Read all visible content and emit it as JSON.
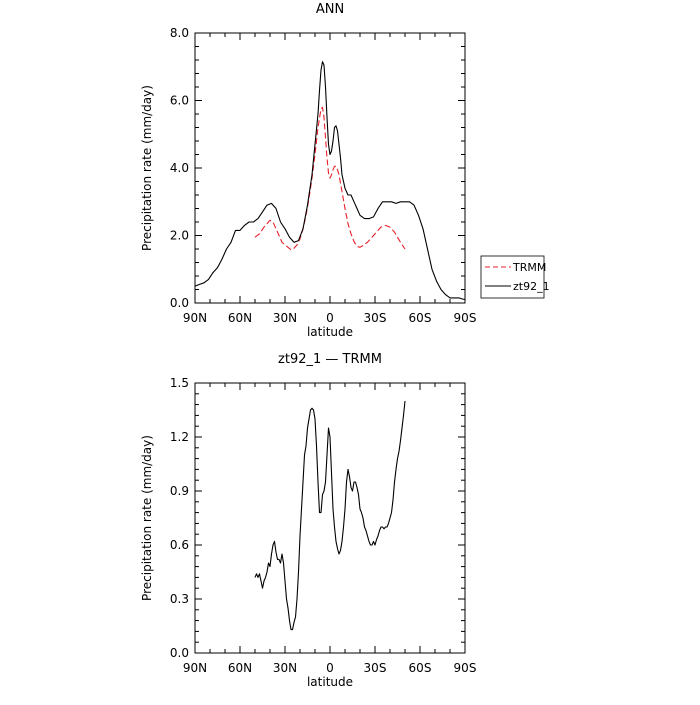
{
  "chart_data": [
    {
      "type": "line",
      "title": "ANN",
      "xlabel": "latitude",
      "ylabel": "Precipitation rate (mm/day)",
      "xlim": [
        90,
        -90
      ],
      "ylim": [
        0,
        8
      ],
      "x_ticks": [
        {
          "value": 90,
          "label": "90N"
        },
        {
          "value": 60,
          "label": "60N"
        },
        {
          "value": 30,
          "label": "30N"
        },
        {
          "value": 0,
          "label": "0"
        },
        {
          "value": -30,
          "label": "30S"
        },
        {
          "value": -60,
          "label": "60S"
        },
        {
          "value": -90,
          "label": "90S"
        }
      ],
      "y_ticks": [
        {
          "value": 0,
          "label": "0.0"
        },
        {
          "value": 2,
          "label": "2.0"
        },
        {
          "value": 4,
          "label": "4.0"
        },
        {
          "value": 6,
          "label": "6.0"
        },
        {
          "value": 8,
          "label": "8.0"
        }
      ],
      "legend_position": "right",
      "series": [
        {
          "name": "TRMM",
          "color": "#e8202a",
          "dash": "dashed",
          "x": [
            50,
            47,
            44,
            42,
            40,
            38,
            36,
            34,
            32,
            30,
            28,
            26,
            24,
            22,
            20,
            18,
            16,
            14,
            12,
            10,
            8,
            6,
            5,
            4,
            3,
            2,
            1,
            0,
            -1,
            -2,
            -3,
            -4,
            -5,
            -6,
            -8,
            -10,
            -12,
            -14,
            -16,
            -18,
            -20,
            -22,
            -25,
            -28,
            -31,
            -34,
            -37,
            -40,
            -43,
            -45,
            -47,
            -50
          ],
          "y": [
            1.95,
            2.05,
            2.25,
            2.35,
            2.45,
            2.4,
            2.2,
            2.0,
            1.8,
            1.72,
            1.65,
            1.58,
            1.62,
            1.72,
            1.9,
            2.2,
            2.6,
            3.1,
            3.7,
            4.4,
            5.2,
            5.75,
            5.8,
            5.5,
            4.9,
            4.3,
            3.85,
            3.7,
            3.8,
            3.95,
            4.05,
            4.05,
            3.95,
            3.8,
            3.3,
            2.8,
            2.35,
            2.05,
            1.82,
            1.68,
            1.65,
            1.7,
            1.8,
            1.95,
            2.1,
            2.25,
            2.3,
            2.25,
            2.1,
            1.95,
            1.8,
            1.6
          ]
        },
        {
          "name": "zt92_1",
          "color": "#000000",
          "dash": "solid",
          "x": [
            90,
            87,
            84,
            81,
            78,
            75,
            72,
            69,
            66,
            63,
            60,
            57,
            54,
            51,
            48,
            45,
            42,
            39,
            36,
            33,
            30,
            27,
            24,
            21,
            18,
            15,
            12,
            10,
            8,
            7,
            6,
            5,
            4,
            3,
            2,
            1,
            0,
            -1,
            -2,
            -3,
            -4,
            -5,
            -6,
            -7,
            -8,
            -10,
            -12,
            -14,
            -16,
            -18,
            -20,
            -23,
            -26,
            -29,
            -32,
            -35,
            -38,
            -41,
            -44,
            -47,
            -50,
            -53,
            -56,
            -59,
            -62,
            -65,
            -68,
            -71,
            -74,
            -77,
            -80,
            -83,
            -86,
            -88,
            -90
          ],
          "y": [
            0.5,
            0.55,
            0.6,
            0.7,
            0.9,
            1.05,
            1.3,
            1.6,
            1.8,
            2.15,
            2.15,
            2.3,
            2.4,
            2.4,
            2.5,
            2.7,
            2.9,
            2.95,
            2.8,
            2.4,
            2.2,
            1.95,
            1.8,
            1.85,
            2.2,
            2.9,
            3.8,
            4.7,
            5.6,
            6.3,
            6.9,
            7.15,
            7.05,
            6.4,
            5.5,
            4.7,
            4.4,
            4.5,
            4.8,
            5.2,
            5.25,
            5.1,
            4.7,
            4.3,
            3.8,
            3.4,
            3.2,
            3.2,
            3.0,
            2.8,
            2.6,
            2.5,
            2.5,
            2.55,
            2.8,
            3.0,
            3.0,
            3.0,
            2.95,
            3.0,
            3.0,
            3.0,
            2.9,
            2.6,
            2.2,
            1.6,
            1.0,
            0.65,
            0.4,
            0.25,
            0.15,
            0.15,
            0.15,
            0.12,
            0.1
          ]
        }
      ]
    },
    {
      "type": "line",
      "title": "zt92_1 — TRMM",
      "xlabel": "latitude",
      "ylabel": "Precipitation rate (mm/day)",
      "xlim": [
        90,
        -90
      ],
      "ylim": [
        0,
        1.5
      ],
      "x_ticks": [
        {
          "value": 90,
          "label": "90N"
        },
        {
          "value": 60,
          "label": "60N"
        },
        {
          "value": 30,
          "label": "30N"
        },
        {
          "value": 0,
          "label": "0"
        },
        {
          "value": -30,
          "label": "30S"
        },
        {
          "value": -60,
          "label": "60S"
        },
        {
          "value": -90,
          "label": "90S"
        }
      ],
      "y_ticks": [
        {
          "value": 0,
          "label": "0.0"
        },
        {
          "value": 0.3,
          "label": "0.3"
        },
        {
          "value": 0.6,
          "label": "0.6"
        },
        {
          "value": 0.9,
          "label": "0.9"
        },
        {
          "value": 1.2,
          "label": "1.2"
        },
        {
          "value": 1.5,
          "label": "1.5"
        }
      ],
      "series": [
        {
          "color": "#000000",
          "dash": "solid",
          "x": [
            50,
            49,
            48,
            47,
            46,
            45,
            44,
            43,
            42,
            41,
            40,
            39,
            38,
            37,
            36,
            35,
            34,
            33,
            32,
            31,
            30,
            29,
            28,
            27,
            26,
            25,
            24,
            23,
            22,
            21,
            20,
            19,
            18,
            17,
            16,
            15,
            14,
            13,
            12,
            11,
            10,
            9,
            8,
            7,
            6,
            5,
            4,
            3,
            2,
            1,
            0,
            -1,
            -2,
            -3,
            -4,
            -5,
            -6,
            -7,
            -8,
            -9,
            -10,
            -11,
            -12,
            -13,
            -14,
            -15,
            -16,
            -17,
            -18,
            -19,
            -20,
            -21,
            -22,
            -23,
            -24,
            -25,
            -26,
            -27,
            -28,
            -29,
            -30,
            -31,
            -32,
            -33,
            -34,
            -35,
            -36,
            -37,
            -38,
            -39,
            -40,
            -41,
            -42,
            -43,
            -44,
            -45,
            -46,
            -47,
            -48,
            -49,
            -50
          ],
          "y": [
            0.42,
            0.44,
            0.42,
            0.44,
            0.4,
            0.36,
            0.4,
            0.42,
            0.45,
            0.5,
            0.48,
            0.55,
            0.6,
            0.62,
            0.56,
            0.52,
            0.52,
            0.5,
            0.55,
            0.5,
            0.4,
            0.3,
            0.25,
            0.18,
            0.13,
            0.13,
            0.17,
            0.2,
            0.3,
            0.45,
            0.65,
            0.8,
            0.95,
            1.1,
            1.15,
            1.25,
            1.3,
            1.35,
            1.36,
            1.35,
            1.3,
            1.15,
            0.95,
            0.78,
            0.78,
            0.88,
            0.9,
            0.95,
            1.1,
            1.25,
            1.2,
            1.0,
            0.8,
            0.7,
            0.62,
            0.58,
            0.55,
            0.57,
            0.62,
            0.7,
            0.8,
            0.95,
            1.02,
            0.98,
            0.92,
            0.9,
            0.95,
            0.95,
            0.92,
            0.88,
            0.8,
            0.78,
            0.75,
            0.7,
            0.68,
            0.65,
            0.62,
            0.6,
            0.6,
            0.62,
            0.6,
            0.63,
            0.65,
            0.68,
            0.7,
            0.7,
            0.69,
            0.7,
            0.7,
            0.72,
            0.75,
            0.78,
            0.85,
            0.95,
            1.02,
            1.08,
            1.12,
            1.18,
            1.25,
            1.32,
            1.4
          ]
        }
      ]
    }
  ]
}
